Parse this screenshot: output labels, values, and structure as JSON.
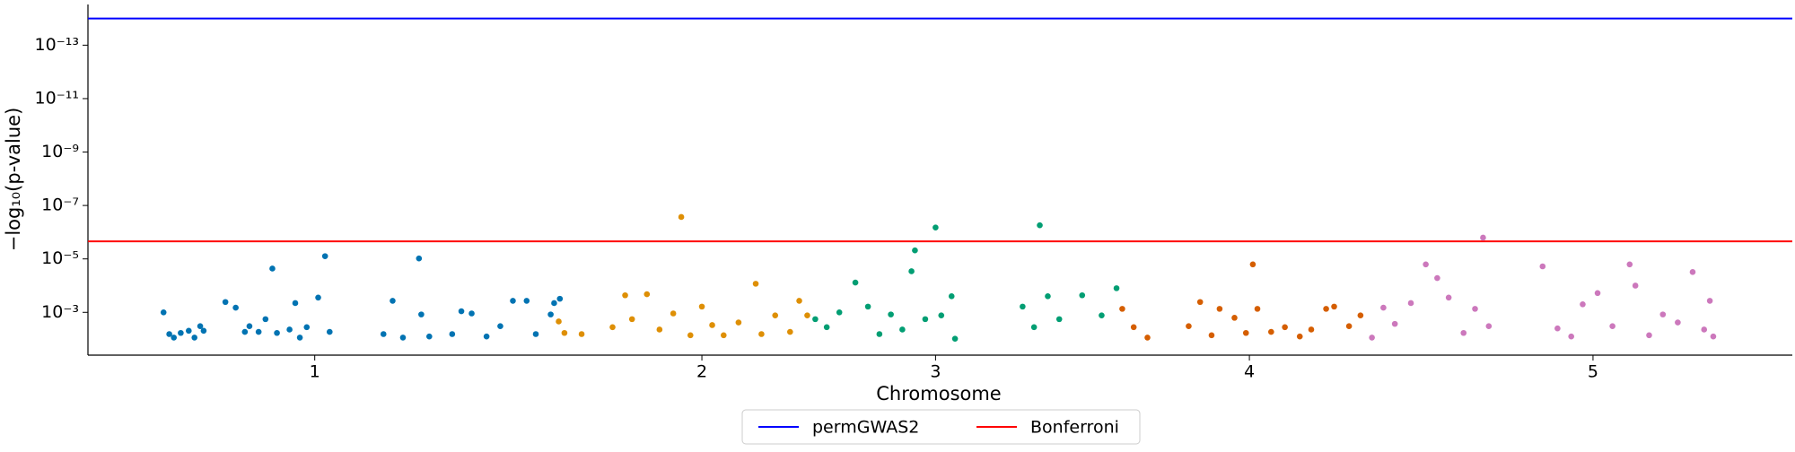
{
  "chart_data": {
    "type": "scatter",
    "xlabel": "Chromosome",
    "ylabel": "−log₁₀(p-value)",
    "yscale": "log",
    "xlim": [
      0,
      1488
    ],
    "ylim": [
      0.04,
      3e-15
    ],
    "xticks": [
      {
        "value": 198,
        "label": "1"
      },
      {
        "value": 536,
        "label": "2"
      },
      {
        "value": 740,
        "label": "3"
      },
      {
        "value": 1014,
        "label": "4"
      },
      {
        "value": 1314,
        "label": "5"
      }
    ],
    "yticks": [
      {
        "value": 0.001,
        "label": "10⁻³"
      },
      {
        "value": 1e-05,
        "label": "10⁻⁵"
      },
      {
        "value": 1e-07,
        "label": "10⁻⁷"
      },
      {
        "value": 1e-09,
        "label": "10⁻⁹"
      },
      {
        "value": 1e-11,
        "label": "10⁻¹¹"
      },
      {
        "value": 1e-13,
        "label": "10⁻¹³"
      }
    ],
    "series": [
      {
        "color": "#0173b2",
        "x": [
          66,
          71,
          75,
          81,
          88,
          93,
          98,
          101,
          120,
          129,
          137,
          141,
          149,
          155,
          161,
          165,
          176,
          181,
          185,
          191,
          201,
          207,
          211,
          258,
          266,
          275,
          289,
          291,
          298,
          318,
          326,
          335,
          348,
          360,
          371,
          383,
          391,
          404,
          407,
          412
        ],
        "values": [
          0.001,
          0.0065,
          0.0088,
          0.0059,
          0.0049,
          0.0088,
          0.0033,
          0.0049,
          0.00041,
          0.00067,
          0.0054,
          0.0033,
          0.0054,
          0.0018,
          2.3e-05,
          0.0059,
          0.0044,
          0.00045,
          0.0088,
          0.0036,
          0.00028,
          7.9e-06,
          0.0054,
          0.0065,
          0.00037,
          0.0088,
          9.6e-06,
          0.0012,
          0.008,
          0.0065,
          0.00091,
          0.0011,
          0.008,
          0.0033,
          0.00037,
          0.00037,
          0.0065,
          0.0012,
          0.00045,
          0.00031
        ]
      },
      {
        "color": "#de8f05",
        "x": [
          411,
          416,
          431,
          458,
          469,
          475,
          488,
          499,
          511,
          518,
          526,
          536,
          545,
          555,
          568,
          583,
          588,
          600,
          613,
          621,
          628
        ],
        "values": [
          0.0022,
          0.0059,
          0.0065,
          0.0036,
          0.00023,
          0.0018,
          0.00021,
          0.0044,
          0.0011,
          2.7e-07,
          0.0072,
          0.00061,
          0.003,
          0.0072,
          0.0024,
          8.5e-05,
          0.0065,
          0.0013,
          0.0054,
          0.00037,
          0.0013
        ]
      },
      {
        "color": "#029e73",
        "x": [
          635,
          645,
          656,
          670,
          681,
          691,
          701,
          711,
          719,
          722,
          731,
          740,
          745,
          754,
          757,
          816,
          826,
          831,
          838,
          848,
          868,
          885,
          898
        ],
        "values": [
          0.0018,
          0.0036,
          0.001,
          7.7e-05,
          0.00061,
          0.0065,
          0.0012,
          0.0044,
          2.9e-05,
          4.8e-06,
          0.0018,
          6.7e-07,
          0.0013,
          0.00025,
          0.0097,
          0.00061,
          0.0036,
          5.5e-07,
          0.00025,
          0.0018,
          0.00023,
          0.0013,
          0.000125
        ]
      },
      {
        "color": "#d55e00",
        "x": [
          903,
          913,
          925,
          961,
          971,
          981,
          988,
          1001,
          1011,
          1017,
          1021,
          1033,
          1045,
          1058,
          1068,
          1081,
          1088,
          1101,
          1111
        ],
        "values": [
          0.00074,
          0.0036,
          0.0088,
          0.0033,
          0.00041,
          0.0072,
          0.00074,
          0.0016,
          0.0059,
          1.6e-05,
          0.00074,
          0.0054,
          0.0036,
          0.008,
          0.0044,
          0.00074,
          0.00061,
          0.0033,
          0.0013
        ]
      },
      {
        "color": "#cc78bc",
        "x": [
          1121,
          1131,
          1141,
          1155,
          1168,
          1178,
          1188,
          1201,
          1211,
          1218,
          1223,
          1270,
          1283,
          1295,
          1305,
          1318,
          1331,
          1346,
          1351,
          1363,
          1375,
          1388,
          1401,
          1411,
          1416,
          1419
        ],
        "values": [
          0.0088,
          0.00067,
          0.0027,
          0.00045,
          1.6e-05,
          5.2e-05,
          0.00028,
          0.0059,
          0.00074,
          1.6e-06,
          0.0033,
          1.9e-05,
          0.004,
          0.008,
          0.0005,
          0.00019,
          0.0033,
          1.6e-05,
          0.0001,
          0.0072,
          0.0012,
          0.0024,
          3.1e-05,
          0.0044,
          0.00037,
          0.008
        ]
      }
    ],
    "hlines": [
      {
        "name": "permGWAS2",
        "color": "#0000ff",
        "value": 1e-14
      },
      {
        "name": "Bonferroni",
        "color": "#ff0000",
        "value": 2.2e-06
      }
    ],
    "legend": "lower center"
  }
}
